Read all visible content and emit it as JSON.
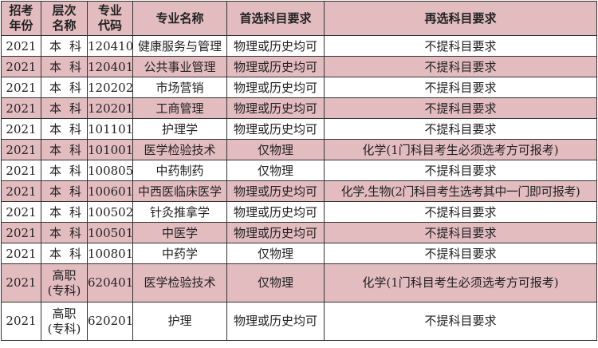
{
  "colors": {
    "highlight": "#e3bcc0",
    "border": "#333333"
  },
  "headers": [
    "招考\n年份",
    "层次\n名称",
    "专业\n代码",
    "专业名称",
    "首选科目要求",
    "再选科目要求"
  ],
  "rows": [
    {
      "year": "2021",
      "level": "本科",
      "code": "120410",
      "major": "健康服务与管理",
      "first": "物理或历史均可",
      "second": "不提科目要求",
      "highlight": false
    },
    {
      "year": "2021",
      "level": "本科",
      "code": "120401",
      "major": "公共事业管理",
      "first": "物理或历史均可",
      "second": "不提科目要求",
      "highlight": true
    },
    {
      "year": "2021",
      "level": "本科",
      "code": "120202",
      "major": "市场营销",
      "first": "物理或历史均可",
      "second": "不提科目要求",
      "highlight": false
    },
    {
      "year": "2021",
      "level": "本科",
      "code": "120201",
      "major": "工商管理",
      "first": "物理或历史均可",
      "second": "不提科目要求",
      "highlight": true
    },
    {
      "year": "2021",
      "level": "本科",
      "code": "101101",
      "major": "护理学",
      "first": "物理或历史均可",
      "second": "不提科目要求",
      "highlight": false
    },
    {
      "year": "2021",
      "level": "本科",
      "code": "101001",
      "major": "医学检验技术",
      "first": "仅物理",
      "second": "化学(1门科目考生必须选考方可报考)",
      "highlight": true
    },
    {
      "year": "2021",
      "level": "本科",
      "code": "100805",
      "major": "中药制药",
      "first": "仅物理",
      "second": "不提科目要求",
      "highlight": false
    },
    {
      "year": "2021",
      "level": "本科",
      "code": "100601",
      "major": "中西医临床医学",
      "first": "物理或历史均可",
      "second": "化学,生物(2门科目考生选考其中一门即可报考)",
      "highlight": true
    },
    {
      "year": "2021",
      "level": "本科",
      "code": "100502",
      "major": "针灸推拿学",
      "first": "物理或历史均可",
      "second": "不提科目要求",
      "highlight": false
    },
    {
      "year": "2021",
      "level": "本科",
      "code": "100501",
      "major": "中医学",
      "first": "物理或历史均可",
      "second": "不提科目要求",
      "highlight": true
    },
    {
      "year": "2021",
      "level": "本科",
      "code": "100801",
      "major": "中药学",
      "first": "仅物理",
      "second": "不提科目要求",
      "highlight": false
    },
    {
      "year": "2021",
      "level": "高职\n(专科)",
      "code": "620401",
      "major": "医学检验技术",
      "first": "仅物理",
      "second": "化学(1门科目考生必须选考方可报考)",
      "highlight": true
    },
    {
      "year": "2021",
      "level": "高职\n(专科)",
      "code": "620201",
      "major": "护理",
      "first": "物理或历史均可",
      "second": "不提科目要求",
      "highlight": false
    }
  ]
}
